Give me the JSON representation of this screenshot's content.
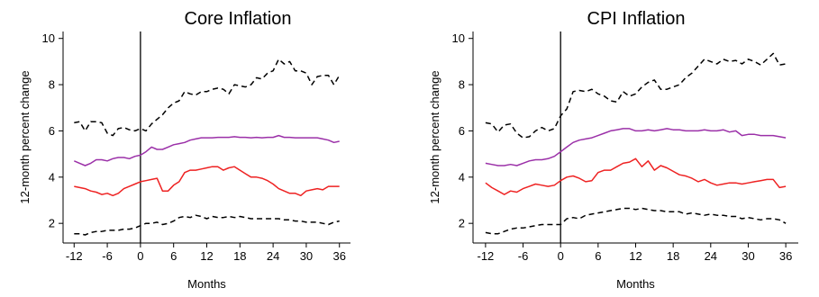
{
  "chart_data": [
    {
      "type": "line",
      "title": "Core Inflation",
      "xlabel": "Months",
      "ylabel": "12-month percent change",
      "xlim": [
        -14,
        38
      ],
      "ylim": [
        1.15,
        10.3
      ],
      "xticks": [
        -12,
        -6,
        0,
        6,
        12,
        18,
        24,
        30,
        36
      ],
      "yticks": [
        2,
        4,
        6,
        8,
        10
      ],
      "vline_x": 0,
      "grid": false,
      "legend": "none",
      "x": [
        -12,
        -11,
        -10,
        -9,
        -8,
        -7,
        -6,
        -5,
        -4,
        -3,
        -2,
        -1,
        0,
        1,
        2,
        3,
        4,
        5,
        6,
        7,
        8,
        9,
        10,
        11,
        12,
        13,
        14,
        15,
        16,
        17,
        18,
        19,
        20,
        21,
        22,
        23,
        24,
        25,
        26,
        27,
        28,
        29,
        30,
        31,
        32,
        33,
        34,
        35,
        36
      ],
      "series": [
        {
          "color": "#000000",
          "style": "dashed",
          "values": [
            6.35,
            6.4,
            6.0,
            6.4,
            6.4,
            6.35,
            5.9,
            5.8,
            6.1,
            6.15,
            6.05,
            6.0,
            6.1,
            6.0,
            6.3,
            6.5,
            6.7,
            7.0,
            7.2,
            7.3,
            7.7,
            7.6,
            7.55,
            7.7,
            7.7,
            7.8,
            7.85,
            7.8,
            7.6,
            8.0,
            7.95,
            7.9,
            8.0,
            8.3,
            8.25,
            8.5,
            8.6,
            9.1,
            8.9,
            9.0,
            8.6,
            8.6,
            8.5,
            8.0,
            8.35,
            8.4,
            8.4,
            8.0,
            8.4
          ]
        },
        {
          "color": "#9b30a8",
          "style": "solid",
          "values": [
            4.7,
            4.6,
            4.5,
            4.6,
            4.75,
            4.75,
            4.7,
            4.8,
            4.85,
            4.85,
            4.8,
            4.9,
            4.95,
            5.1,
            5.3,
            5.2,
            5.2,
            5.3,
            5.4,
            5.45,
            5.5,
            5.6,
            5.65,
            5.7,
            5.7,
            5.7,
            5.72,
            5.72,
            5.72,
            5.75,
            5.72,
            5.72,
            5.7,
            5.72,
            5.7,
            5.72,
            5.72,
            5.8,
            5.72,
            5.72,
            5.7,
            5.7,
            5.7,
            5.7,
            5.7,
            5.65,
            5.6,
            5.5,
            5.55
          ]
        },
        {
          "color": "#ee2222",
          "style": "solid",
          "values": [
            3.6,
            3.55,
            3.5,
            3.4,
            3.35,
            3.25,
            3.3,
            3.2,
            3.3,
            3.5,
            3.6,
            3.7,
            3.8,
            3.85,
            3.9,
            3.95,
            3.4,
            3.4,
            3.65,
            3.8,
            4.2,
            4.3,
            4.3,
            4.35,
            4.4,
            4.45,
            4.45,
            4.3,
            4.4,
            4.45,
            4.3,
            4.15,
            4.0,
            4.0,
            3.95,
            3.85,
            3.7,
            3.5,
            3.4,
            3.3,
            3.3,
            3.2,
            3.4,
            3.45,
            3.5,
            3.45,
            3.6,
            3.6,
            3.6
          ]
        },
        {
          "color": "#000000",
          "style": "dashed",
          "values": [
            1.55,
            1.55,
            1.5,
            1.6,
            1.65,
            1.65,
            1.7,
            1.7,
            1.7,
            1.75,
            1.75,
            1.8,
            1.9,
            2.0,
            2.0,
            2.05,
            1.95,
            2.0,
            2.1,
            2.25,
            2.3,
            2.25,
            2.35,
            2.3,
            2.2,
            2.3,
            2.25,
            2.25,
            2.3,
            2.25,
            2.3,
            2.25,
            2.2,
            2.2,
            2.2,
            2.2,
            2.2,
            2.2,
            2.15,
            2.15,
            2.1,
            2.1,
            2.05,
            2.05,
            2.05,
            2.0,
            1.95,
            2.05,
            2.1
          ]
        }
      ]
    },
    {
      "type": "line",
      "title": "CPI Inflation",
      "xlabel": "Months",
      "ylabel": "12-month percent change",
      "xlim": [
        -14,
        38
      ],
      "ylim": [
        1.15,
        10.3
      ],
      "xticks": [
        -12,
        -6,
        0,
        6,
        12,
        18,
        24,
        30,
        36
      ],
      "yticks": [
        2,
        4,
        6,
        8,
        10
      ],
      "vline_x": 0,
      "grid": false,
      "legend": "none",
      "x": [
        -12,
        -11,
        -10,
        -9,
        -8,
        -7,
        -6,
        -5,
        -4,
        -3,
        -2,
        -1,
        0,
        1,
        2,
        3,
        4,
        5,
        6,
        7,
        8,
        9,
        10,
        11,
        12,
        13,
        14,
        15,
        16,
        17,
        18,
        19,
        20,
        21,
        22,
        23,
        24,
        25,
        26,
        27,
        28,
        29,
        30,
        31,
        32,
        33,
        34,
        35,
        36
      ],
      "series": [
        {
          "color": "#000000",
          "style": "dashed",
          "values": [
            6.35,
            6.3,
            5.95,
            6.25,
            6.3,
            5.9,
            5.7,
            5.75,
            6.0,
            6.15,
            6.0,
            6.1,
            6.65,
            6.95,
            7.7,
            7.75,
            7.7,
            7.8,
            7.6,
            7.5,
            7.3,
            7.25,
            7.7,
            7.5,
            7.6,
            7.9,
            8.1,
            8.2,
            7.8,
            7.8,
            7.9,
            8.0,
            8.3,
            8.5,
            8.8,
            9.1,
            9.0,
            8.9,
            9.1,
            9.0,
            9.05,
            8.9,
            9.1,
            9.0,
            8.85,
            9.1,
            9.35,
            8.85,
            8.9
          ]
        },
        {
          "color": "#9b30a8",
          "style": "solid",
          "values": [
            4.6,
            4.55,
            4.5,
            4.5,
            4.55,
            4.5,
            4.6,
            4.7,
            4.75,
            4.75,
            4.8,
            4.9,
            5.1,
            5.3,
            5.5,
            5.6,
            5.65,
            5.7,
            5.8,
            5.9,
            6.0,
            6.05,
            6.1,
            6.1,
            6.0,
            6.0,
            6.05,
            6.0,
            6.05,
            6.1,
            6.05,
            6.05,
            6.0,
            6.0,
            6.0,
            6.05,
            6.0,
            6.0,
            6.05,
            5.95,
            6.0,
            5.8,
            5.85,
            5.85,
            5.8,
            5.8,
            5.8,
            5.75,
            5.7
          ]
        },
        {
          "color": "#ee2222",
          "style": "solid",
          "values": [
            3.75,
            3.55,
            3.4,
            3.25,
            3.4,
            3.35,
            3.5,
            3.6,
            3.7,
            3.65,
            3.6,
            3.65,
            3.85,
            4.0,
            4.05,
            3.95,
            3.8,
            3.85,
            4.2,
            4.3,
            4.3,
            4.45,
            4.6,
            4.65,
            4.8,
            4.45,
            4.7,
            4.3,
            4.5,
            4.4,
            4.25,
            4.1,
            4.05,
            3.95,
            3.8,
            3.9,
            3.75,
            3.65,
            3.7,
            3.75,
            3.75,
            3.7,
            3.75,
            3.8,
            3.85,
            3.9,
            3.9,
            3.55,
            3.6
          ]
        },
        {
          "color": "#000000",
          "style": "dashed",
          "values": [
            1.6,
            1.55,
            1.55,
            1.65,
            1.75,
            1.8,
            1.8,
            1.85,
            1.9,
            1.95,
            1.95,
            1.95,
            1.95,
            2.2,
            2.25,
            2.2,
            2.35,
            2.4,
            2.45,
            2.5,
            2.55,
            2.6,
            2.65,
            2.65,
            2.6,
            2.65,
            2.6,
            2.55,
            2.55,
            2.5,
            2.5,
            2.5,
            2.4,
            2.45,
            2.4,
            2.35,
            2.4,
            2.35,
            2.35,
            2.3,
            2.3,
            2.2,
            2.25,
            2.2,
            2.15,
            2.2,
            2.2,
            2.15,
            2.0
          ]
        }
      ]
    }
  ]
}
